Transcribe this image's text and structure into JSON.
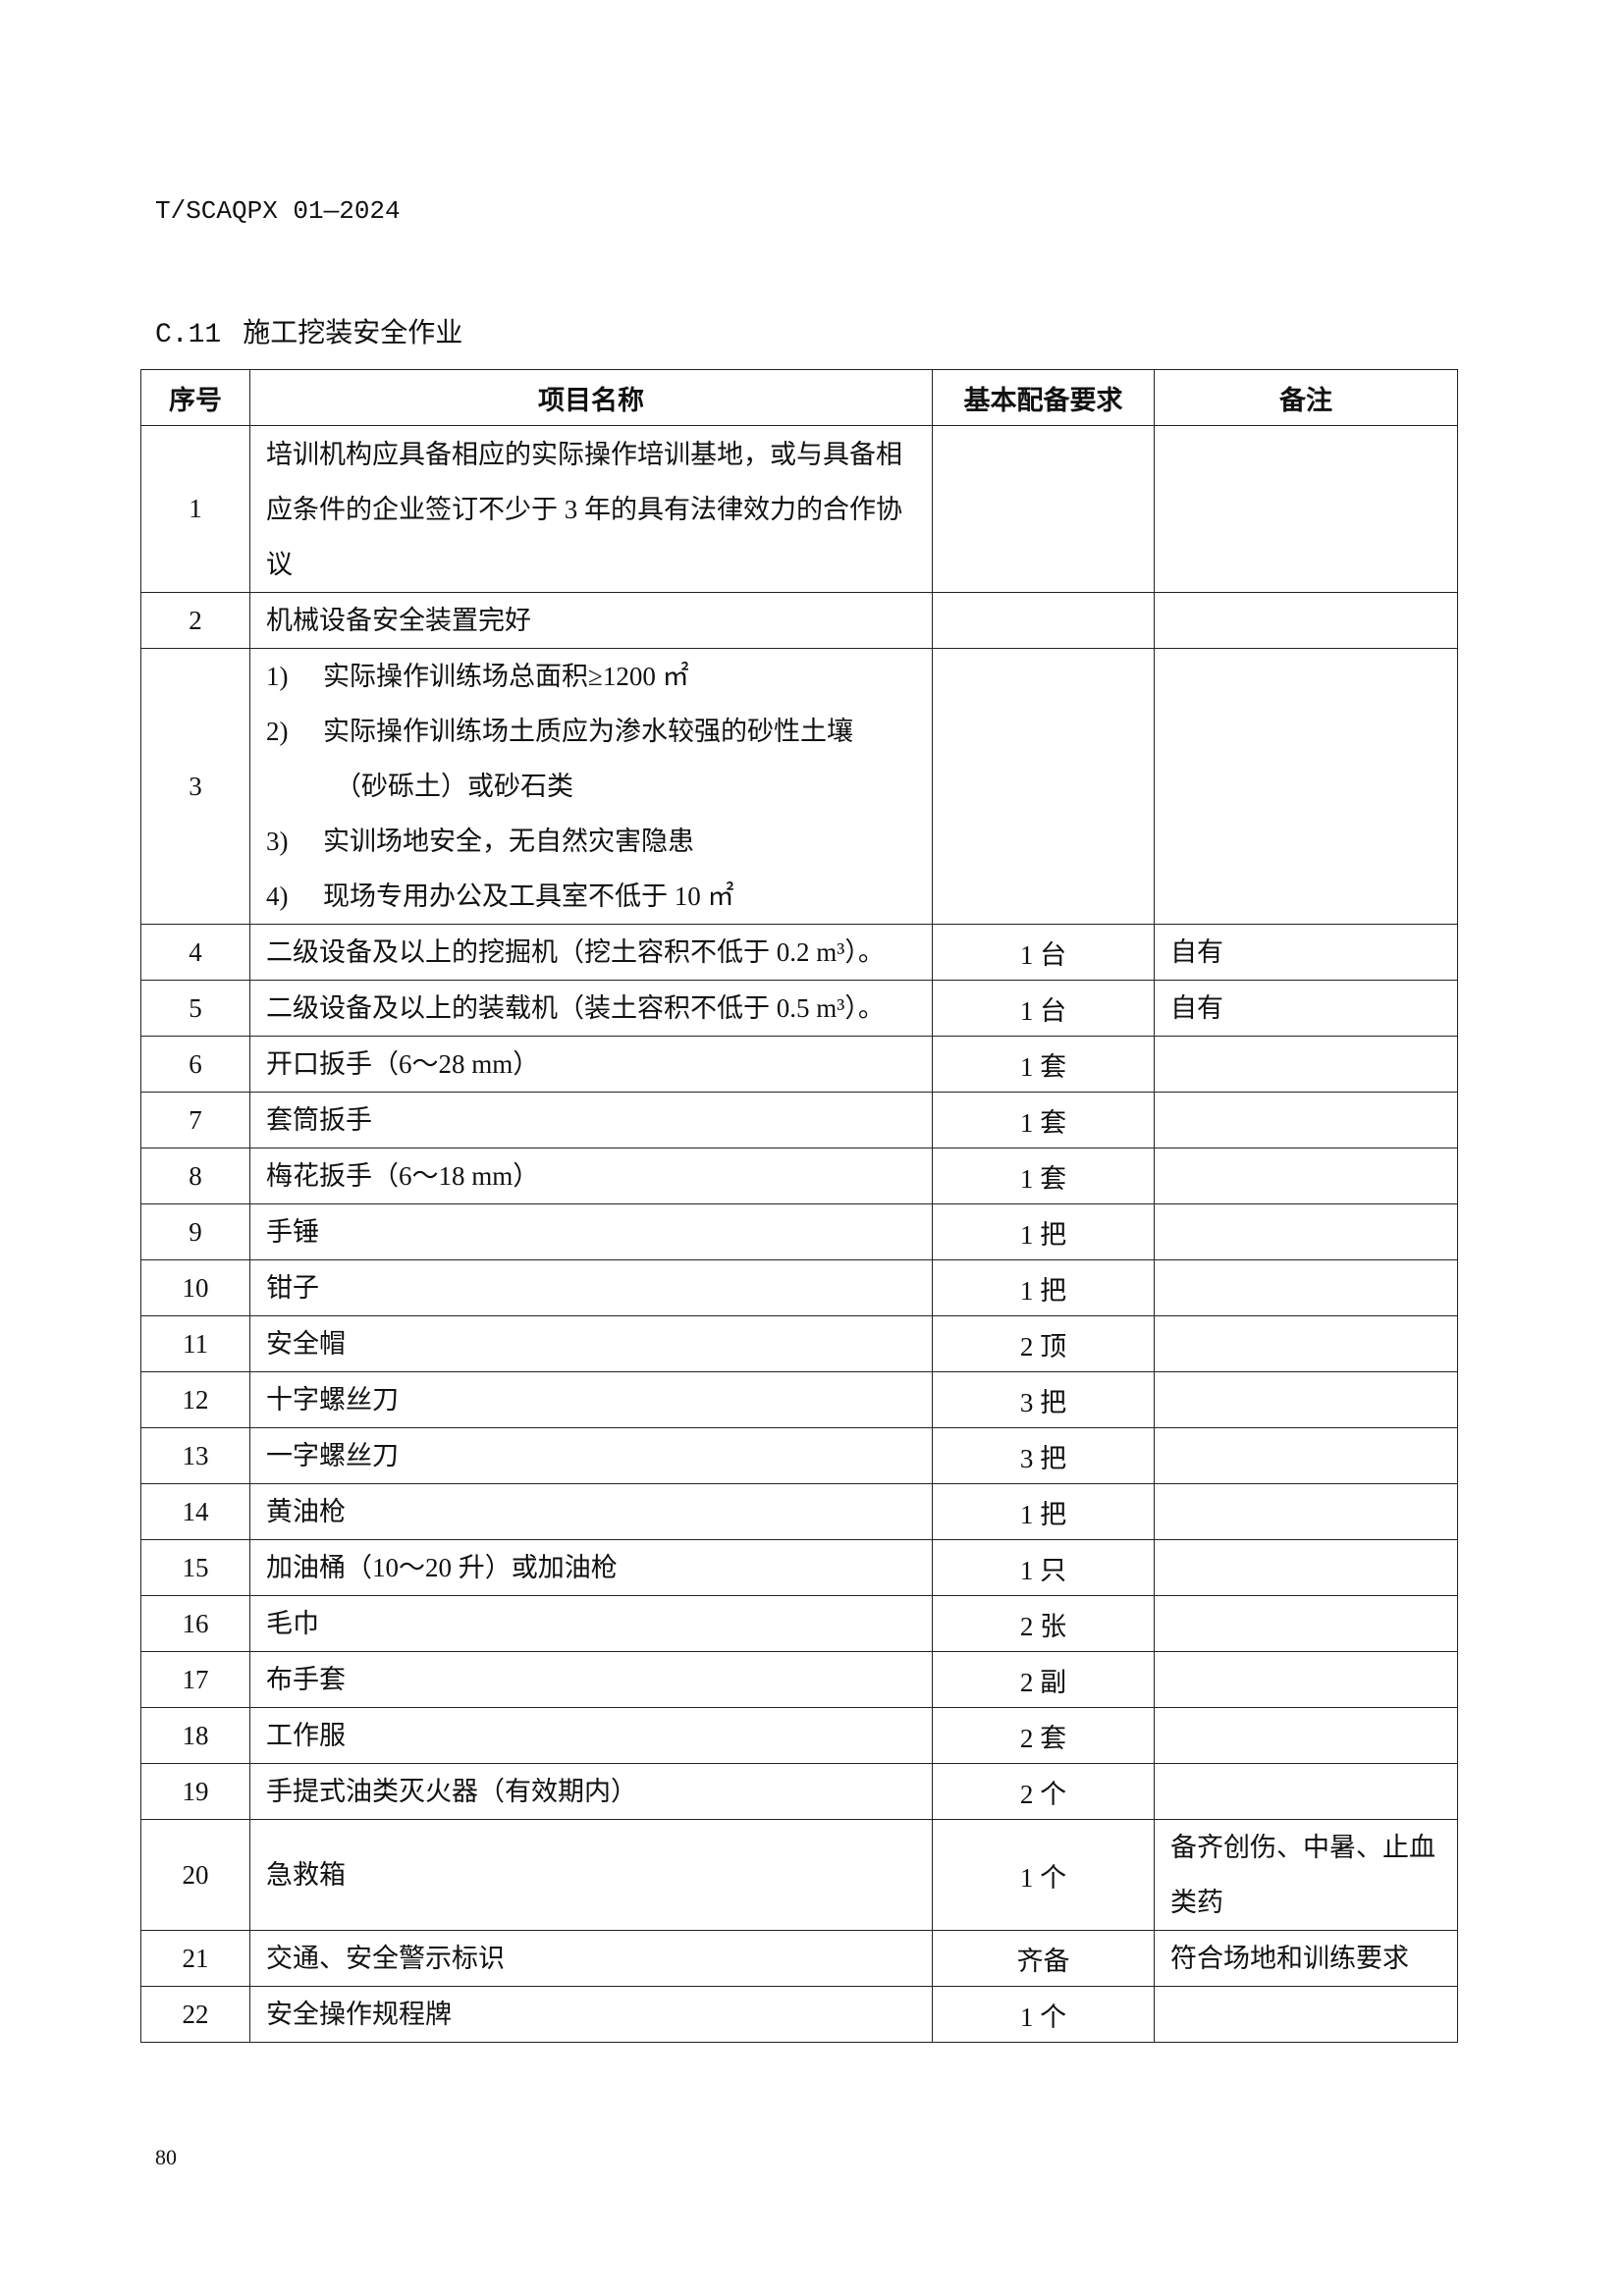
{
  "header": {
    "doc_id": "T/SCAQPX 01—2024"
  },
  "section": {
    "number": "C.11",
    "title": "施工挖装安全作业"
  },
  "table": {
    "columns": [
      "序号",
      "项目名称",
      "基本配备要求",
      "备注"
    ],
    "rows": [
      {
        "no": "1",
        "name": "培训机构应具备相应的实际操作培训基地，或与具备相应条件的企业签订不少于 3 年的具有法律效力的合作协议",
        "req": "",
        "note": ""
      },
      {
        "no": "2",
        "name": "机械设备安全装置完好",
        "req": "",
        "note": ""
      },
      {
        "no": "3",
        "items": [
          {
            "n": "1)",
            "t": "实际操作训练场总面积≥1200 ㎡"
          },
          {
            "n": "2)",
            "t": "实际操作训练场土质应为渗水较强的砂性土壤"
          },
          {
            "n": "",
            "t": "（砂砾土）或砂石类"
          },
          {
            "n": "3)",
            "t": "实训场地安全，无自然灾害隐患"
          },
          {
            "n": "4)",
            "t": "现场专用办公及工具室不低于 10 ㎡"
          }
        ],
        "req": "",
        "note": ""
      },
      {
        "no": "4",
        "name": "二级设备及以上的挖掘机（挖土容积不低于 0.2 m³）。",
        "req": "1 台",
        "note": "自有"
      },
      {
        "no": "5",
        "name": "二级设备及以上的装载机（装土容积不低于 0.5 m³）。",
        "req": "1 台",
        "note": "自有"
      },
      {
        "no": "6",
        "name": "开口扳手（6～28 mm）",
        "req": "1 套",
        "note": ""
      },
      {
        "no": "7",
        "name": "套筒扳手",
        "req": "1 套",
        "note": ""
      },
      {
        "no": "8",
        "name": "梅花扳手（6～18 mm）",
        "req": "1 套",
        "note": ""
      },
      {
        "no": "9",
        "name": "手锤",
        "req": "1 把",
        "note": ""
      },
      {
        "no": "10",
        "name": "钳子",
        "req": "1 把",
        "note": ""
      },
      {
        "no": "11",
        "name": "安全帽",
        "req": "2 顶",
        "note": ""
      },
      {
        "no": "12",
        "name": "十字螺丝刀",
        "req": "3 把",
        "note": ""
      },
      {
        "no": "13",
        "name": "一字螺丝刀",
        "req": "3 把",
        "note": ""
      },
      {
        "no": "14",
        "name": "黄油枪",
        "req": "1 把",
        "note": ""
      },
      {
        "no": "15",
        "name": "加油桶（10～20 升）或加油枪",
        "req": "1 只",
        "note": ""
      },
      {
        "no": "16",
        "name": "毛巾",
        "req": "2 张",
        "note": ""
      },
      {
        "no": "17",
        "name": "布手套",
        "req": "2 副",
        "note": ""
      },
      {
        "no": "18",
        "name": "工作服",
        "req": "2 套",
        "note": ""
      },
      {
        "no": "19",
        "name": "手提式油类灭火器（有效期内）",
        "req": "2 个",
        "note": ""
      },
      {
        "no": "20",
        "name": "急救箱",
        "req": "1 个",
        "note": "备齐创伤、中暑、止血类药"
      },
      {
        "no": "21",
        "name": "交通、安全警示标识",
        "req": "齐备",
        "note": "符合场地和训练要求"
      },
      {
        "no": "22",
        "name": "安全操作规程牌",
        "req": "1 个",
        "note": ""
      }
    ]
  },
  "footer": {
    "page_number": "80"
  }
}
